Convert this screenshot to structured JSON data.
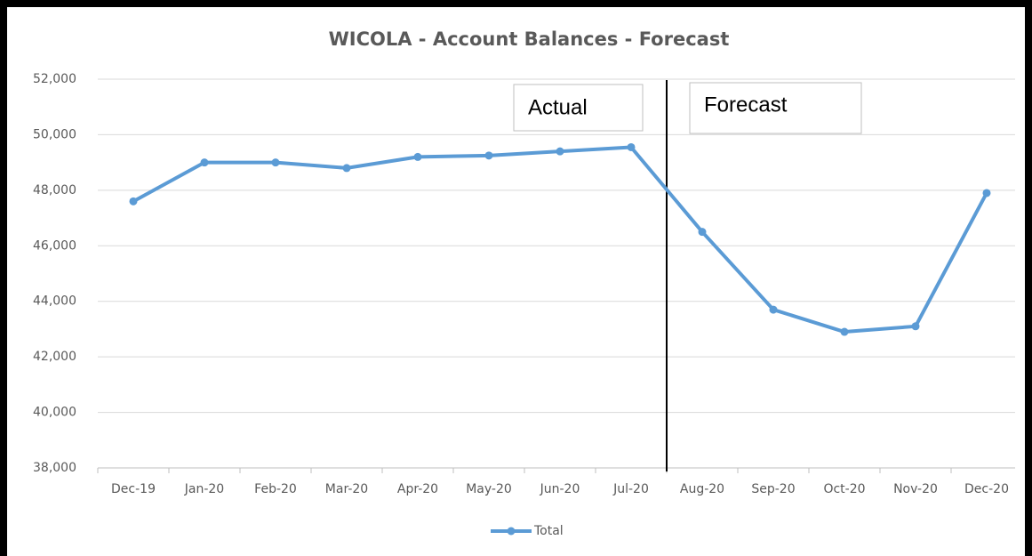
{
  "chart_data": {
    "type": "line",
    "title": "WICOLA - Account Balances - Forecast",
    "categories": [
      "Dec-19",
      "Jan-20",
      "Feb-20",
      "Mar-20",
      "Apr-20",
      "May-20",
      "Jun-20",
      "Jul-20",
      "Aug-20",
      "Sep-20",
      "Oct-20",
      "Nov-20",
      "Dec-20"
    ],
    "series": [
      {
        "name": "Total",
        "color": "#5b9bd5",
        "values": [
          47600,
          49000,
          49000,
          48800,
          49200,
          49250,
          49400,
          49550,
          46500,
          43700,
          42900,
          43100,
          47900
        ]
      }
    ],
    "ylim": [
      38000,
      52000
    ],
    "yticks": [
      {
        "value": 38000,
        "label": "38,000"
      },
      {
        "value": 40000,
        "label": "40,000"
      },
      {
        "value": 42000,
        "label": "42,000"
      },
      {
        "value": 44000,
        "label": "44,000"
      },
      {
        "value": 46000,
        "label": "46,000"
      },
      {
        "value": 48000,
        "label": "48,000"
      },
      {
        "value": 50000,
        "label": "50,000"
      },
      {
        "value": 52000,
        "label": "52,000"
      }
    ],
    "grid": true,
    "legend": "bottom",
    "annotations": [
      "Actual",
      "Forecast"
    ]
  }
}
